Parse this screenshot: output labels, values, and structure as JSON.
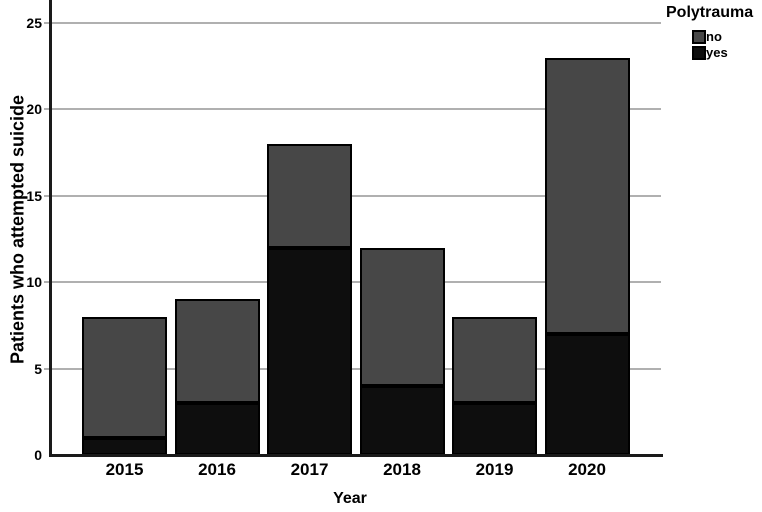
{
  "chart_data": {
    "type": "bar",
    "stacked": true,
    "xlabel": "Year",
    "ylabel": "Patients who attempted suicide",
    "categories": [
      "2015",
      "2016",
      "2017",
      "2018",
      "2019",
      "2020"
    ],
    "series": [
      {
        "name": "yes",
        "color": "#0e0e0e",
        "values": [
          1,
          3,
          12,
          4,
          3,
          7
        ]
      },
      {
        "name": "no",
        "color": "#474747",
        "values": [
          7,
          6,
          6,
          8,
          5,
          16
        ]
      }
    ],
    "yticks": [
      0,
      5,
      10,
      15,
      20,
      25
    ],
    "ylim": [
      0,
      26.3
    ],
    "grid": "horizontal",
    "legend": {
      "title": "Polytrauma",
      "position": "top-right",
      "entries": [
        {
          "label": "no",
          "color": "#474747"
        },
        {
          "label": "yes",
          "color": "#0e0e0e"
        }
      ]
    },
    "colors": {
      "background": "#ffffff",
      "gridline": "#b0b0b0",
      "axis": "#1a1a1a",
      "bar_border": "#000000",
      "text": "#000000"
    }
  }
}
